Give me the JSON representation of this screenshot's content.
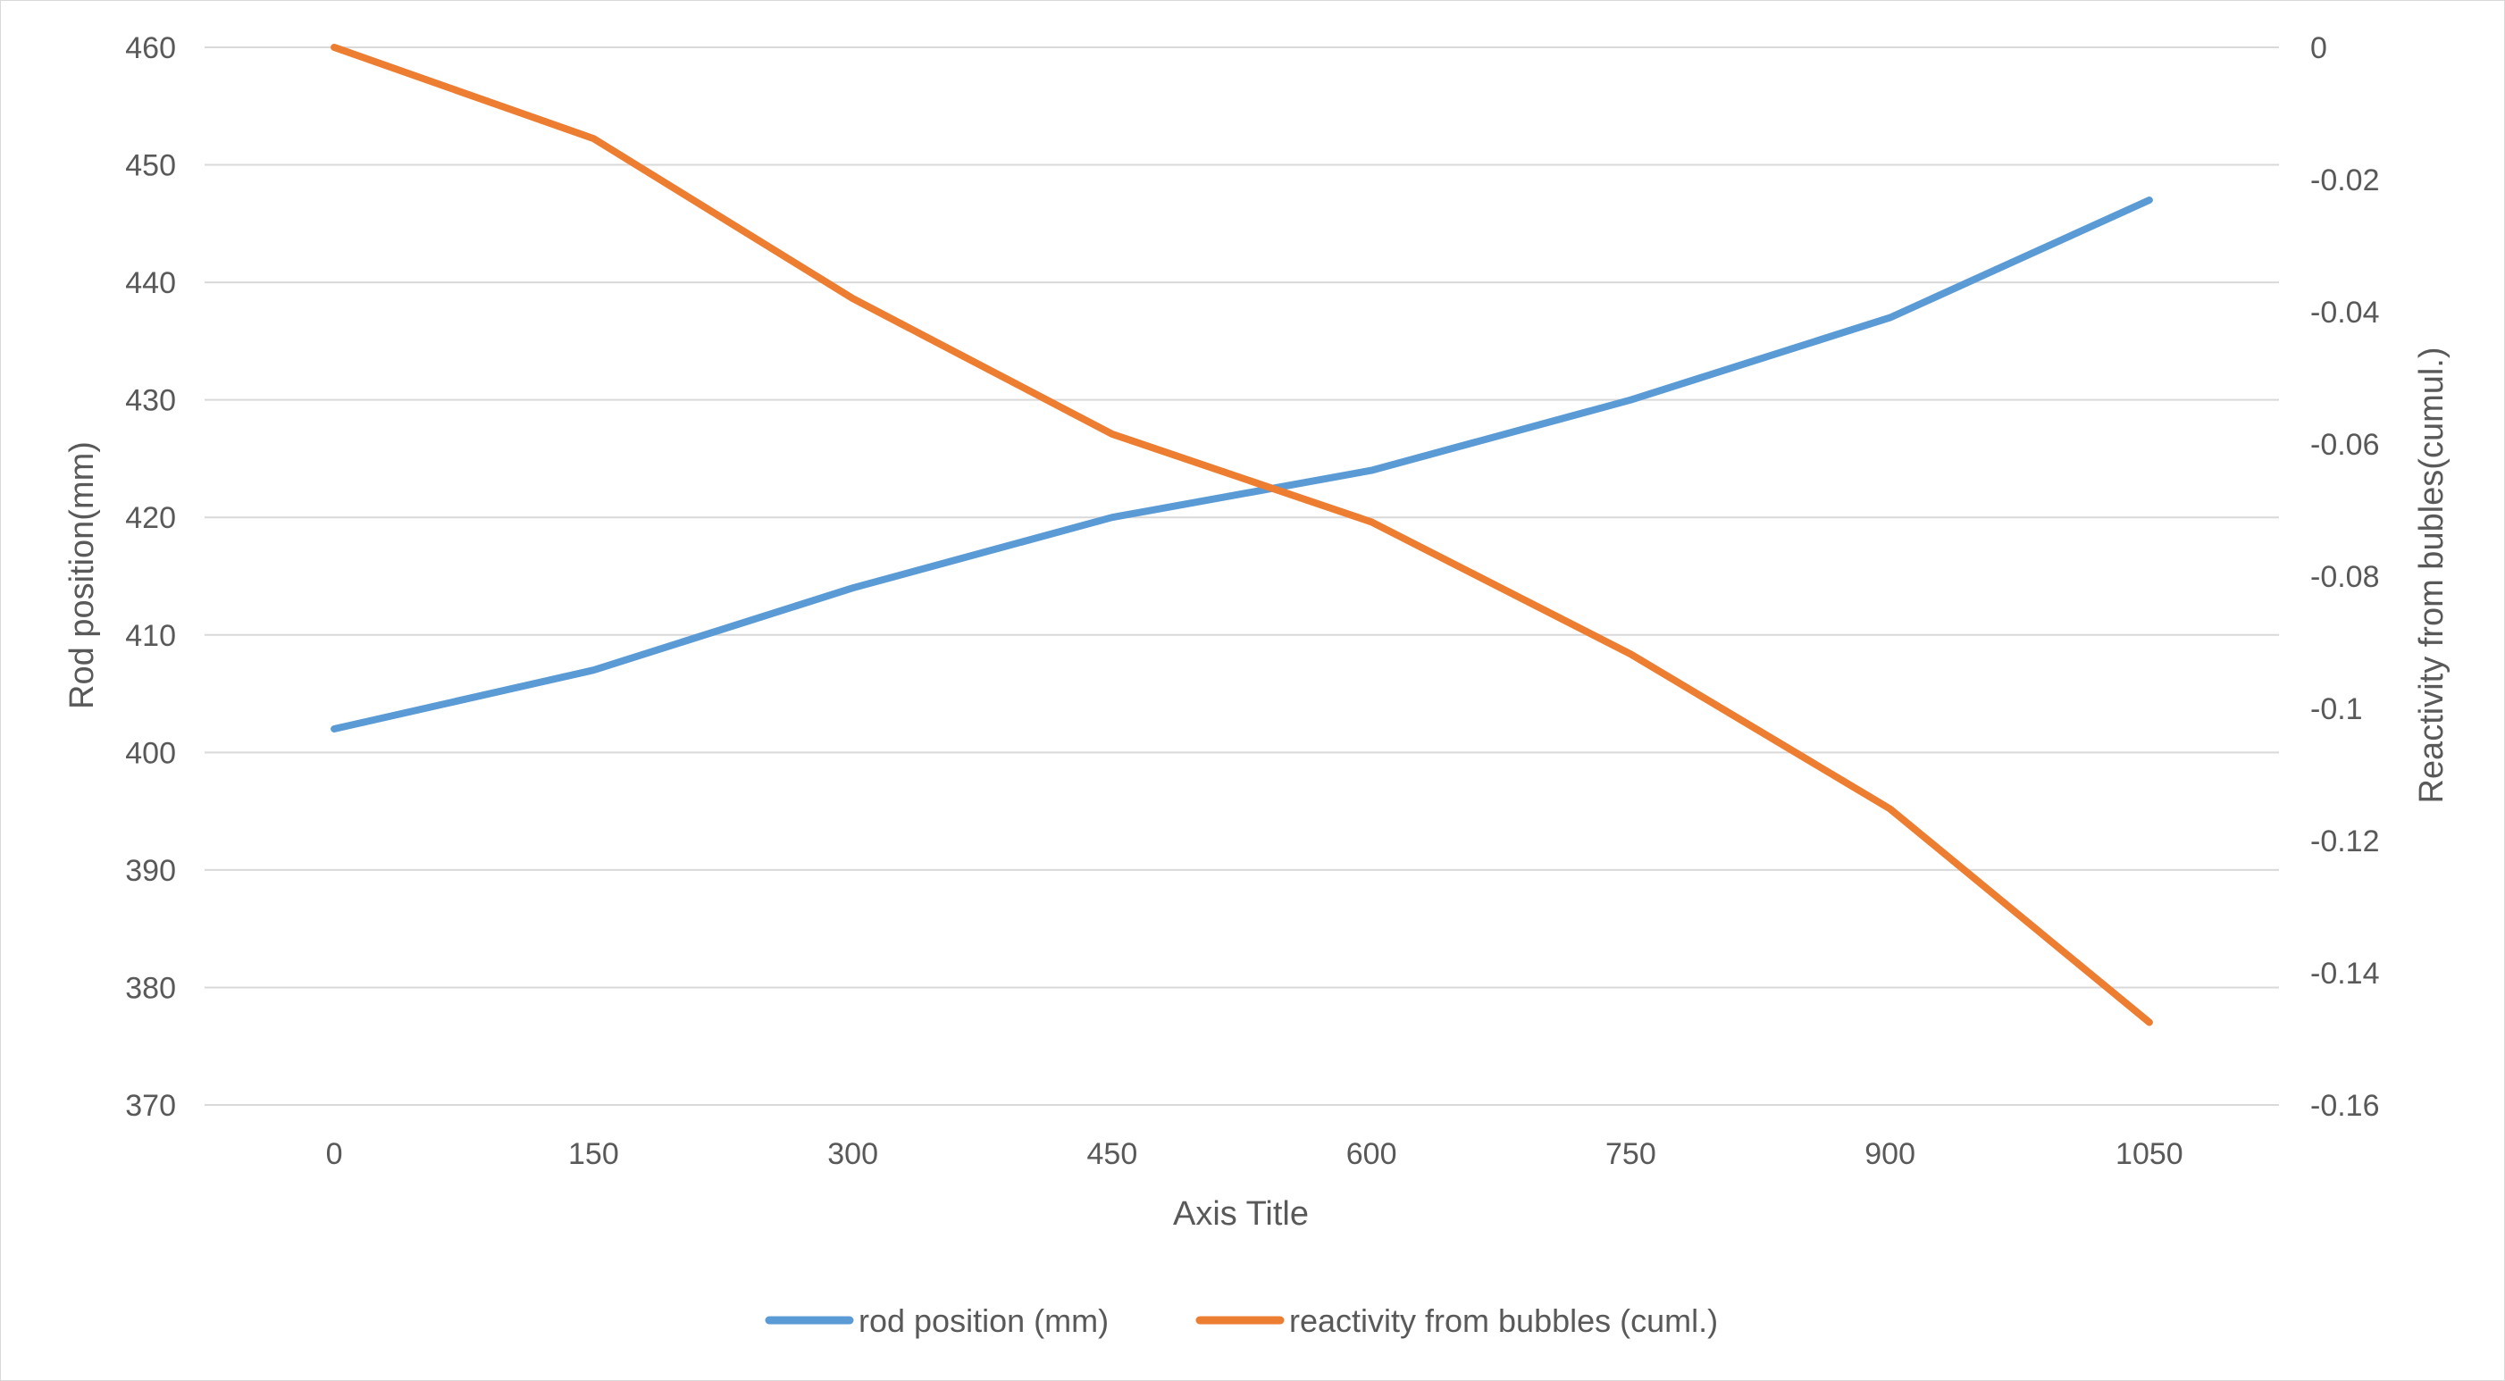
{
  "chart_data": {
    "type": "line",
    "x": [
      0,
      150,
      300,
      450,
      600,
      750,
      900,
      1050
    ],
    "xlabel": "Axis Title",
    "ylabel": "Rod position(mm)",
    "y2label": "Reactivity from bubles(cumul.)",
    "ylim": [
      370,
      460
    ],
    "y2lim": [
      -0.16,
      0
    ],
    "yticks": [
      "370",
      "380",
      "390",
      "400",
      "410",
      "420",
      "430",
      "440",
      "450",
      "460"
    ],
    "y2ticks": [
      "-0.16",
      "-0.14",
      "-0.12",
      "-0.1",
      "-0.08",
      "-0.06",
      "-0.04",
      "-0.02",
      "0"
    ],
    "xticks": [
      "0",
      "150",
      "300",
      "450",
      "600",
      "750",
      "900",
      "1050"
    ],
    "grid": true,
    "legend_position": "bottom",
    "series": [
      {
        "name": "rod position (mm)",
        "axis": "left",
        "color": "#5b9bd5",
        "values": [
          402,
          407,
          414,
          420,
          424,
          430,
          437,
          447
        ]
      },
      {
        "name": "reactivity from bubbles (cuml.)",
        "axis": "right",
        "color": "#ed7d31",
        "values": [
          0,
          -0.0138,
          -0.038,
          -0.0585,
          -0.0718,
          -0.0918,
          -0.1152,
          -0.1475
        ]
      }
    ]
  }
}
